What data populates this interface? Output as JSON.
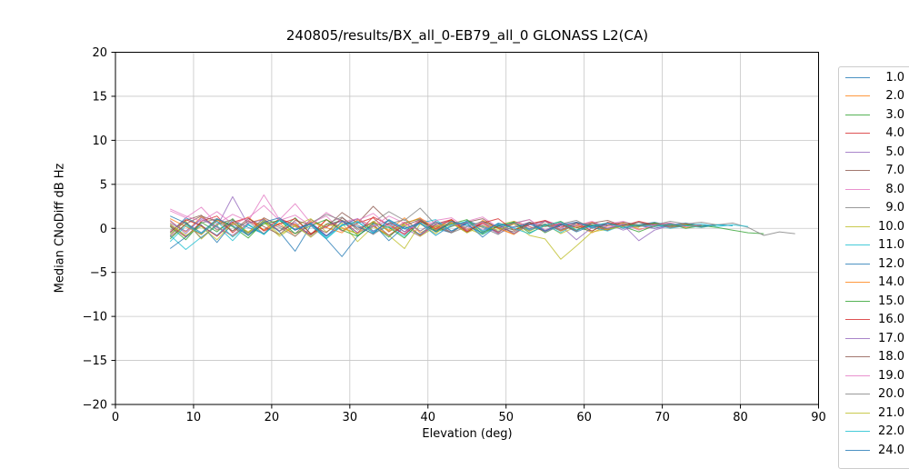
{
  "chart_data": {
    "type": "line",
    "title": "240805/results/BX_all_0-EB79_all_0 GLONASS L2(CA)",
    "xlabel": "Elevation (deg)",
    "ylabel": "Median CNoDiff dB Hz",
    "xlim": [
      0,
      90
    ],
    "ylim": [
      -20,
      20
    ],
    "xticks": [
      0,
      10,
      20,
      30,
      40,
      50,
      60,
      70,
      80,
      90
    ],
    "yticks": [
      -20,
      -15,
      -10,
      -5,
      0,
      5,
      10,
      15,
      20
    ],
    "grid": true,
    "legend_position": "right-outside",
    "legend_last_entry_clipped": "24.0",
    "series": [
      {
        "name": "1.0",
        "color": "#1f77b4",
        "x0": 7,
        "dx": 2,
        "y": [
          -0.5,
          1.2,
          0.3,
          -0.8,
          0.9,
          0.1,
          -0.6,
          1.0,
          -0.2,
          0.7,
          -0.9,
          0.4,
          1.1,
          -0.3,
          0.6,
          -0.7,
          0.8,
          0.0,
          -0.5,
          0.9,
          0.2,
          -0.4,
          0.7,
          -0.1,
          0.5,
          -0.3,
          0.6,
          0.1,
          -0.2,
          0.5,
          0.3,
          0.0,
          0.4,
          0.6,
          0.3,
          0.4
        ]
      },
      {
        "name": "2.0",
        "color": "#ff7f0e",
        "x0": 7,
        "dx": 2,
        "y": [
          0.8,
          -0.4,
          1.3,
          0.2,
          -0.9,
          0.6,
          1.1,
          -0.3,
          0.5,
          -0.8,
          1.0,
          0.1,
          -0.6,
          0.8,
          -0.2,
          1.2,
          -0.5,
          0.3,
          0.9,
          -0.4,
          0.6,
          0.0,
          -0.7,
          0.5,
          0.8,
          -0.2,
          0.4,
          -0.5,
          0.3,
          0.6,
          -0.1,
          0.2,
          0.5,
          0.1,
          0.3
        ]
      },
      {
        "name": "3.0",
        "color": "#2ca02c",
        "x0": 7,
        "dx": 2,
        "y": [
          -1.2,
          0.5,
          -0.7,
          1.0,
          0.2,
          -1.1,
          0.7,
          -0.3,
          1.2,
          -0.6,
          0.4,
          0.9,
          -0.8,
          0.3,
          -1.0,
          0.6,
          1.1,
          -0.4,
          0.2,
          0.8,
          -0.6,
          0.3,
          -0.2,
          0.7,
          -0.5,
          0.4,
          0.1,
          -0.3,
          0.6,
          0.2,
          -0.4,
          0.3,
          0.5,
          0.0,
          0.3,
          0.1,
          -0.2,
          -0.5,
          -0.6
        ]
      },
      {
        "name": "4.0",
        "color": "#d62728",
        "x0": 7,
        "dx": 2,
        "y": [
          0.3,
          -1.0,
          0.8,
          1.4,
          -0.5,
          0.9,
          -0.2,
          1.1,
          0.4,
          -0.7,
          1.0,
          -0.3,
          0.6,
          1.2,
          -0.4,
          0.7,
          -0.8,
          0.5,
          1.0,
          -0.2,
          0.6,
          -0.5,
          0.8,
          0.2,
          -0.3,
          0.7,
          0.1,
          0.4,
          -0.2,
          0.5,
          0.2,
          0.6,
          0.1,
          0.3
        ]
      },
      {
        "name": "5.0",
        "color": "#9467bd",
        "x0": 7,
        "dx": 2,
        "y": [
          0.6,
          -0.3,
          1.0,
          0.2,
          3.6,
          0.4,
          -0.6,
          0.9,
          -0.1,
          0.7,
          -0.8,
          0.3,
          1.1,
          -0.4,
          0.6,
          0.0,
          -0.9,
          0.5,
          0.8,
          -0.3,
          0.4,
          -0.6,
          0.2,
          0.7,
          -0.4,
          0.3,
          -1.3,
          0.1,
          0.5,
          -0.2,
          0.4,
          0.0,
          0.3,
          0.5,
          0.2
        ]
      },
      {
        "name": "7.0",
        "color": "#8c564b",
        "x0": 7,
        "dx": 2,
        "y": [
          -0.8,
          0.9,
          1.5,
          -0.2,
          0.7,
          -0.5,
          1.2,
          0.3,
          -0.6,
          1.0,
          0.1,
          1.8,
          0.6,
          2.5,
          0.8,
          -0.4,
          0.9,
          0.2,
          -0.5,
          0.7,
          1.1,
          0.0,
          0.6,
          -0.3,
          0.8,
          0.4,
          -0.2,
          0.6,
          0.9,
          0.3,
          0.7,
          0.2,
          0.5
        ]
      },
      {
        "name": "8.0",
        "color": "#e377c2",
        "x0": 7,
        "dx": 2,
        "y": [
          2.0,
          1.2,
          2.4,
          0.5,
          1.6,
          0.8,
          3.8,
          1.0,
          2.8,
          0.6,
          1.4,
          -0.3,
          0.9,
          1.7,
          0.2,
          -0.6,
          1.1,
          0.4,
          -0.4,
          0.8,
          1.3,
          0.1,
          0.6,
          -0.2,
          0.9,
          0.3,
          0.7,
          0.0,
          0.5,
          0.8,
          0.2,
          0.4
        ]
      },
      {
        "name": "9.0",
        "color": "#7f7f7f",
        "x0": 7,
        "dx": 2,
        "y": [
          0.4,
          -0.9,
          0.6,
          1.1,
          -0.3,
          0.8,
          -0.6,
          1.0,
          0.2,
          -0.8,
          0.5,
          1.3,
          -0.2,
          0.7,
          1.9,
          0.9,
          2.3,
          0.4,
          -0.5,
          0.8,
          0.1,
          -0.7,
          0.6,
          1.0,
          -0.3,
          0.5,
          0.9,
          0.0,
          0.6,
          0.3,
          0.7,
          0.4,
          0.8,
          0.5,
          0.7,
          0.4,
          0.6,
          0.1,
          -0.8,
          -0.4,
          -0.6
        ]
      },
      {
        "name": "10.0",
        "color": "#bcbd22",
        "x0": 7,
        "dx": 2,
        "y": [
          -0.6,
          0.8,
          -1.2,
          0.4,
          1.0,
          -0.5,
          0.7,
          -0.9,
          0.3,
          1.1,
          -0.4,
          0.6,
          -1.5,
          0.2,
          -0.8,
          -2.3,
          0.5,
          -0.6,
          0.9,
          0.0,
          -0.7,
          0.4,
          0.8,
          -0.3,
          0.5,
          -0.6,
          0.2,
          0.6,
          -0.1,
          0.3,
          0.1
        ]
      },
      {
        "name": "11.0",
        "color": "#17becf",
        "x0": 7,
        "dx": 2,
        "y": [
          -0.8,
          -2.4,
          -1.0,
          0.3,
          -1.4,
          0.5,
          -0.7,
          0.9,
          -0.2,
          0.6,
          -1.1,
          0.4,
          0.8,
          -0.5,
          0.2,
          -0.9,
          0.6,
          1.0,
          -0.3,
          0.5,
          -0.7,
          0.3,
          0.7,
          -0.2,
          0.4,
          -0.5,
          0.6,
          0.1,
          -0.3,
          0.4,
          0.2,
          0.5,
          0.0,
          0.3,
          0.5,
          0.2,
          0.4,
          0.2
        ]
      },
      {
        "name": "12.0",
        "color": "#1f77b4",
        "x0": 7,
        "dx": 2,
        "y": [
          -2.3,
          -1.0,
          0.4,
          -1.6,
          0.6,
          -0.8,
          1.0,
          -0.4,
          -2.6,
          0.3,
          -1.2,
          -3.2,
          -0.9,
          0.5,
          -1.4,
          0.2,
          -0.7,
          0.8,
          -0.3,
          0.6,
          -1.0,
          0.4,
          -0.6,
          0.7,
          -0.2,
          0.5,
          -0.4,
          0.3,
          0.6,
          0.0,
          0.4,
          0.7,
          0.3,
          0.5,
          0.2,
          0.4,
          0.3
        ]
      },
      {
        "name": "14.0",
        "color": "#ff7f0e",
        "x0": 7,
        "dx": 2,
        "y": [
          1.1,
          0.2,
          -0.7,
          0.9,
          0.4,
          1.3,
          -0.2,
          0.6,
          -0.9,
          0.8,
          0.1,
          -0.5,
          1.0,
          0.3,
          -0.8,
          0.5,
          1.2,
          -0.1,
          0.7,
          -0.4,
          0.9,
          0.0,
          -0.6,
          0.5,
          0.8,
          -0.3,
          0.4,
          0.7,
          -0.1,
          0.5,
          0.2,
          0.6,
          0.3,
          0.5,
          0.1,
          0.4
        ]
      },
      {
        "name": "15.0",
        "color": "#2ca02c",
        "x0": 7,
        "dx": 2,
        "y": [
          0.2,
          -1.3,
          0.7,
          -0.4,
          1.1,
          -0.8,
          0.5,
          0.9,
          -0.6,
          0.3,
          1.0,
          -0.2,
          -0.9,
          0.6,
          0.1,
          -1.1,
          0.8,
          -0.3,
          0.5,
          1.0,
          -0.4,
          0.2,
          0.7,
          -0.5,
          0.3,
          0.8,
          -0.2,
          0.4,
          0.0,
          0.5,
          0.3,
          0.6,
          0.2,
          0.4,
          0.3
        ]
      },
      {
        "name": "16.0",
        "color": "#d62728",
        "x0": 7,
        "dx": 2,
        "y": [
          -0.4,
          1.0,
          0.3,
          -0.9,
          0.7,
          1.2,
          -0.3,
          0.5,
          1.1,
          -0.6,
          0.2,
          0.9,
          -0.5,
          1.3,
          0.4,
          -0.7,
          0.8,
          0.0,
          1.0,
          -0.4,
          0.6,
          1.1,
          -0.2,
          0.5,
          0.9,
          0.1,
          0.6,
          -0.3,
          0.7,
          0.3,
          0.8,
          0.4,
          0.6,
          0.2
        ]
      },
      {
        "name": "17.0",
        "color": "#9467bd",
        "x0": 7,
        "dx": 2,
        "y": [
          0.9,
          -0.6,
          1.2,
          0.1,
          -0.8,
          0.6,
          1.0,
          -0.3,
          0.7,
          -1.0,
          0.4,
          0.8,
          -0.5,
          0.2,
          0.9,
          -0.4,
          0.6,
          -0.8,
          0.3,
          0.7,
          -0.2,
          0.5,
          -0.6,
          0.4,
          0.8,
          -0.1,
          0.3,
          0.6,
          0.0,
          0.4,
          -1.4,
          -0.2,
          0.3
        ]
      },
      {
        "name": "18.0",
        "color": "#8c564b",
        "x0": 7,
        "dx": 2,
        "y": [
          -1.0,
          0.5,
          1.4,
          0.8,
          -0.3,
          1.1,
          0.2,
          -0.7,
          0.9,
          0.4,
          -0.5,
          1.2,
          0.0,
          0.7,
          -0.8,
          0.3,
          1.0,
          -0.2,
          0.6,
          -0.5,
          0.8,
          0.1,
          -0.4,
          0.7,
          0.2,
          0.5,
          -0.3,
          0.6,
          0.3,
          0.7,
          0.4,
          0.5
        ]
      },
      {
        "name": "19.0",
        "color": "#e377c2",
        "x0": 7,
        "dx": 2,
        "y": [
          2.2,
          1.4,
          0.8,
          1.9,
          0.5,
          1.2,
          2.6,
          0.9,
          1.5,
          0.3,
          1.8,
          0.7,
          1.1,
          0.2,
          1.4,
          0.6,
          -0.3,
          0.9,
          1.2,
          0.0,
          0.7,
          -0.4,
          0.5,
          1.0,
          -0.2,
          0.6,
          0.3,
          0.8,
          0.1,
          0.5,
          -0.2,
          0.4,
          0.6,
          0.2,
          0.4
        ]
      },
      {
        "name": "20.0",
        "color": "#7f7f7f",
        "x0": 7,
        "dx": 2,
        "y": [
          -0.2,
          0.7,
          -1.1,
          0.5,
          1.0,
          -0.6,
          0.8,
          0.1,
          -0.9,
          0.6,
          1.6,
          0.9,
          0.4,
          -0.7,
          0.5,
          1.0,
          -0.3,
          0.7,
          -0.5,
          0.2,
          0.8,
          -0.4,
          0.6,
          0.0,
          0.5,
          -0.2,
          0.7,
          0.3,
          -0.1,
          0.4,
          0.2,
          0.5,
          0.3,
          0.4
        ]
      },
      {
        "name": "21.0",
        "color": "#bcbd22",
        "x0": 7,
        "dx": 2,
        "y": [
          0.5,
          -0.8,
          0.2,
          -1.3,
          0.6,
          -0.4,
          0.9,
          -0.7,
          0.3,
          -1.0,
          0.5,
          0.0,
          -0.6,
          0.8,
          -0.3,
          0.4,
          -0.9,
          0.2,
          0.6,
          -0.5,
          0.3,
          -0.2,
          0.5,
          -0.8,
          -1.2,
          -3.5,
          -2.0,
          -0.4,
          -0.1,
          0.2
        ]
      },
      {
        "name": "22.0",
        "color": "#17becf",
        "x0": 7,
        "dx": 2,
        "y": [
          -1.5,
          0.3,
          -0.6,
          0.8,
          -1.0,
          0.4,
          -0.7,
          1.0,
          -0.2,
          0.5,
          -1.2,
          0.3,
          0.7,
          -0.5,
          0.9,
          -0.1,
          0.6,
          -0.8,
          0.4,
          0.8,
          -0.3,
          0.5,
          0.0,
          -0.6,
          0.4,
          0.7,
          -0.2,
          0.3,
          0.6,
          0.1,
          0.4,
          0.2,
          0.5,
          0.3,
          0.1,
          0.4,
          0.3
        ]
      },
      {
        "name": "24.0",
        "color": "#1f77b4",
        "x0": 7,
        "dx": 2,
        "y": [
          1.4,
          0.6,
          -0.5,
          1.1,
          0.3,
          -0.8,
          0.7,
          1.2,
          -0.2,
          0.5,
          -0.9,
          0.8,
          0.2,
          -0.6,
          1.0,
          0.0,
          0.6,
          -0.4,
          0.8,
          0.3,
          -0.5,
          0.6,
          0.1,
          0.5,
          -0.3,
          0.4,
          0.7,
          0.2,
          0.4
        ]
      }
    ]
  },
  "colors": {
    "grid": "#c6c6c6",
    "spine": "#000000",
    "legend_border": "#cccccc",
    "background": "#ffffff"
  }
}
